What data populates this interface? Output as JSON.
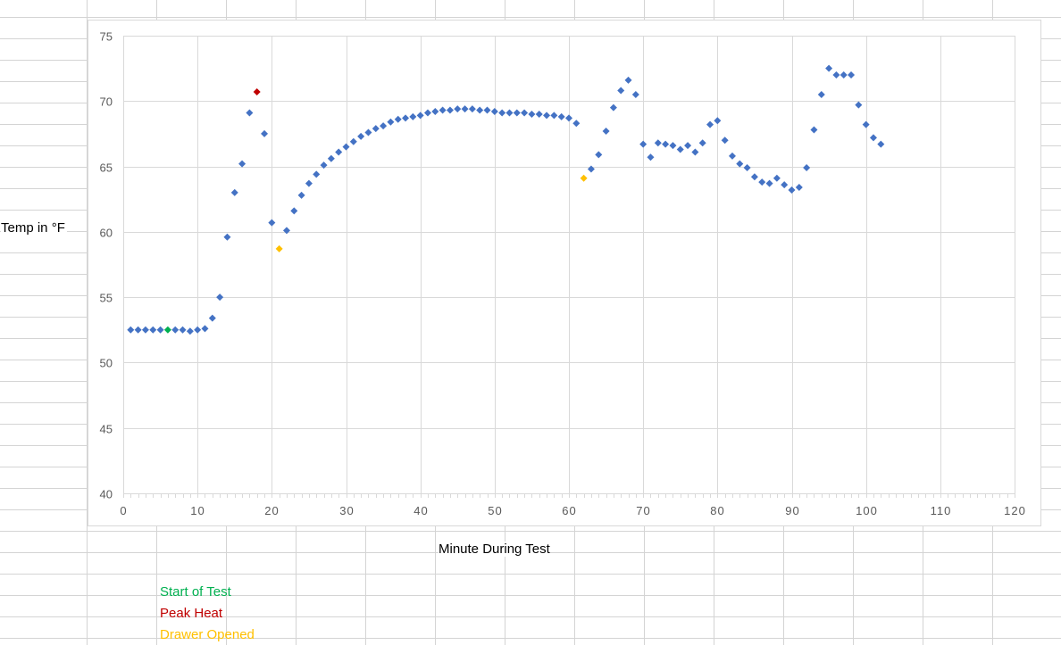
{
  "chart_data": {
    "type": "scatter",
    "title": "",
    "xlabel": "Minute During Test",
    "ylabel": "Temp in °F",
    "xlim": [
      0,
      120
    ],
    "ylim": [
      40,
      75
    ],
    "x_ticks": [
      0,
      10,
      20,
      30,
      40,
      50,
      60,
      70,
      80,
      90,
      100,
      110,
      120
    ],
    "y_ticks": [
      40,
      45,
      50,
      55,
      60,
      65,
      70,
      75
    ],
    "grid": true,
    "series": [
      {
        "color": "#4472c4",
        "x": [
          1,
          2,
          3,
          4,
          5,
          7,
          8,
          9,
          10,
          11,
          12,
          13,
          14,
          15,
          16,
          17,
          19,
          20,
          22,
          23,
          24,
          25,
          26,
          27,
          28,
          29,
          30,
          31,
          32,
          33,
          34,
          35,
          36,
          37,
          38,
          39,
          40,
          41,
          42,
          43,
          44,
          45,
          46,
          47,
          48,
          49,
          50,
          51,
          52,
          53,
          54,
          55,
          56,
          57,
          58,
          59,
          60,
          61,
          63,
          64,
          65,
          66,
          67,
          68,
          69,
          70,
          71,
          72,
          73,
          74,
          75,
          76,
          77,
          78,
          79,
          80,
          81,
          82,
          83,
          84,
          85,
          86,
          87,
          88,
          89,
          90,
          91,
          92,
          93,
          94,
          95,
          96,
          97,
          98,
          99,
          100,
          101,
          102
        ],
        "y": [
          52.5,
          52.5,
          52.5,
          52.5,
          52.5,
          52.5,
          52.5,
          52.4,
          52.5,
          52.6,
          53.4,
          55.0,
          59.6,
          63.0,
          65.2,
          69.1,
          67.5,
          60.7,
          60.1,
          61.6,
          62.8,
          63.7,
          64.4,
          65.1,
          65.6,
          66.1,
          66.5,
          66.9,
          67.3,
          67.6,
          67.9,
          68.1,
          68.4,
          68.6,
          68.7,
          68.8,
          68.9,
          69.1,
          69.2,
          69.3,
          69.3,
          69.4,
          69.4,
          69.4,
          69.3,
          69.3,
          69.2,
          69.1,
          69.1,
          69.1,
          69.1,
          69.0,
          69.0,
          68.9,
          68.9,
          68.8,
          68.7,
          68.3,
          64.8,
          65.9,
          67.7,
          69.5,
          70.8,
          71.6,
          70.5,
          66.7,
          65.7,
          66.8,
          66.7,
          66.6,
          66.3,
          66.6,
          66.1,
          66.8,
          68.2,
          68.5,
          67.0,
          65.8,
          65.2,
          64.9,
          64.2,
          63.8,
          63.7,
          64.1,
          63.6,
          63.2,
          63.4,
          64.9,
          67.8,
          70.5,
          72.5,
          72.0,
          72.0,
          72.0,
          69.7,
          68.2,
          67.2,
          66.7
        ]
      },
      {
        "color": "#00b050",
        "x": [
          6
        ],
        "y": [
          52.5
        ]
      },
      {
        "color": "#c00000",
        "x": [
          18
        ],
        "y": [
          70.7
        ]
      },
      {
        "color": "#ffc000",
        "x": [
          21,
          62
        ],
        "y": [
          58.7,
          64.1
        ]
      }
    ]
  },
  "legend": [
    {
      "label": "Start of Test",
      "color": "#00b050"
    },
    {
      "label": "Peak Heat",
      "color": "#c00000"
    },
    {
      "label": "Drawer Opened",
      "color": "#ffc000"
    }
  ]
}
